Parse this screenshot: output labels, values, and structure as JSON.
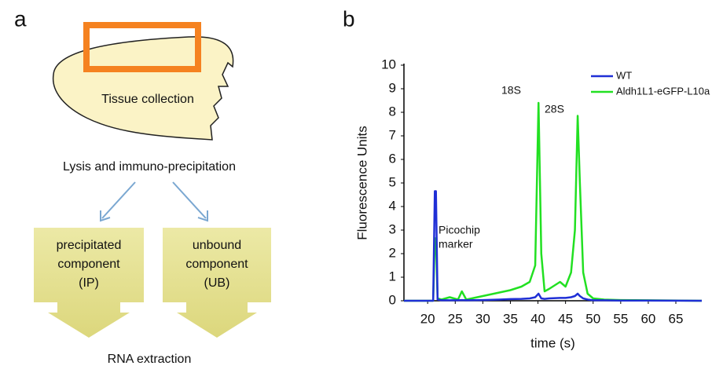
{
  "panel_labels": [
    "a",
    "b"
  ],
  "diagram": {
    "tissue": "Tissue collection",
    "step": "Lysis and immuno-precipitation",
    "boxes": [
      {
        "lines": [
          "precipitated",
          "component",
          "(IP)"
        ]
      },
      {
        "lines": [
          "unbound",
          "component",
          "(UB)"
        ]
      }
    ],
    "final": "RNA extraction"
  },
  "chart_data": {
    "type": "line",
    "xlabel": "time (s)",
    "ylabel": "Fluorescence Units",
    "x": [
      15.7,
      21,
      21.3,
      21.5,
      21.8,
      22.5,
      24,
      25.5,
      26.2,
      27,
      30,
      33,
      35,
      37,
      38.5,
      39.5,
      40.1,
      40.6,
      41.2,
      42,
      44,
      45,
      46,
      46.7,
      47.2,
      47.6,
      48.2,
      49,
      50,
      52,
      55,
      60,
      69.7
    ],
    "series": [
      {
        "name": "WT",
        "color": "#1f2fd6",
        "values": [
          0,
          0,
          4.65,
          4.65,
          0.05,
          0.02,
          0.02,
          0.02,
          0.03,
          0.02,
          0.03,
          0.05,
          0.07,
          0.08,
          0.1,
          0.15,
          0.3,
          0.1,
          0.08,
          0.1,
          0.12,
          0.12,
          0.15,
          0.2,
          0.3,
          0.2,
          0.1,
          0.05,
          0.02,
          0.02,
          0.01,
          0.01,
          0
        ]
      },
      {
        "name": "Aldh1L1-eGFP-L10a",
        "color": "#22e022",
        "values": [
          0,
          0,
          2.65,
          2.65,
          0.1,
          0.05,
          0.15,
          0.05,
          0.4,
          0.05,
          0.2,
          0.35,
          0.45,
          0.6,
          0.8,
          1.5,
          8.4,
          2.0,
          0.4,
          0.5,
          0.8,
          0.6,
          1.2,
          3,
          7.85,
          5,
          1.2,
          0.3,
          0.1,
          0.05,
          0.03,
          0.02,
          0
        ]
      }
    ],
    "annotations": [
      {
        "lines": [
          "18S"
        ]
      },
      {
        "lines": [
          "28S"
        ]
      },
      {
        "lines": [
          "Picochip",
          "marker"
        ]
      }
    ],
    "xlim": [
      15.7,
      69.7
    ],
    "ylim": [
      0,
      10
    ],
    "xticks": [
      20,
      25,
      30,
      35,
      40,
      45,
      50,
      55,
      60,
      65
    ],
    "yticks": [
      0,
      1,
      2,
      3,
      4,
      5,
      6,
      7,
      8,
      9,
      10
    ]
  }
}
